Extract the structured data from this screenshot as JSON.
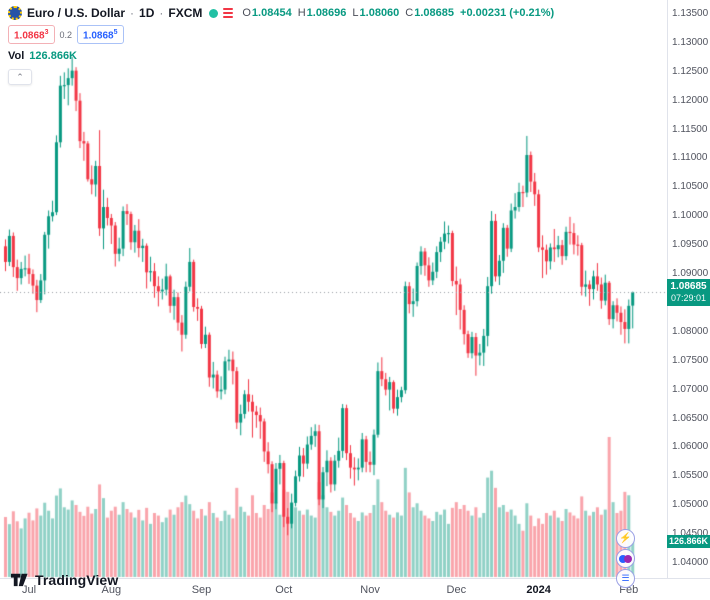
{
  "header": {
    "symbol_name": "Euro / U.S. Dollar",
    "separator": "·",
    "timeframe": "1D",
    "exchange": "FXCM",
    "ohlc": {
      "open_label": "O",
      "open": "1.08454",
      "high_label": "H",
      "high": "1.08696",
      "low_label": "L",
      "low": "1.08060",
      "close_label": "C",
      "close": "1.08685",
      "change": "+0.00231 (+0.21%)"
    },
    "trade_panel": {
      "sell_price": "1.0868",
      "sell_sup": "3",
      "spread": "0.2",
      "buy_price": "1.0868",
      "buy_sup": "5"
    },
    "volume_row": {
      "label": "Vol",
      "value": "126.866K"
    },
    "collapse_icon": "⌃"
  },
  "badges": {
    "last_price": "1.08685",
    "countdown": "07:29:01",
    "volume": "126.866K"
  },
  "footer": {
    "logo_text": "TradingView"
  },
  "colors": {
    "up": "#089981",
    "down": "#f23645",
    "vol_up": "rgba(8,153,129,0.45)",
    "vol_down": "rgba(242,54,69,0.45)",
    "last_line": "#9598a1",
    "buy": "#2962ff",
    "sell": "#f23645",
    "axis_text": "#50535e"
  },
  "chart_data": {
    "type": "candlestick",
    "title": "Euro / U.S. Dollar · 1D · FXCM",
    "legend_position": "top-left",
    "grid": false,
    "y_axis": {
      "min": 1.04,
      "max": 1.135,
      "tick": 0.005,
      "format_decimals": 5
    },
    "x_axis": {
      "month_ticks": [
        {
          "label": "Jul",
          "index": 6
        },
        {
          "label": "Aug",
          "index": 27
        },
        {
          "label": "Sep",
          "index": 50
        },
        {
          "label": "Oct",
          "index": 71
        },
        {
          "label": "Nov",
          "index": 93
        },
        {
          "label": "Dec",
          "index": 115
        },
        {
          "label": "2024",
          "index": 136,
          "bold": true
        },
        {
          "label": "Feb",
          "index": 159
        }
      ]
    },
    "last_price": 1.08685,
    "last_volume_label": "126.866K",
    "candles_format": "[open, high, low, close]",
    "candles": [
      [
        1.0948,
        1.096,
        1.0905,
        1.0921
      ],
      [
        1.0921,
        1.0977,
        1.0914,
        1.0966
      ],
      [
        1.0966,
        1.0972,
        1.0895,
        1.0912
      ],
      [
        1.0912,
        1.0925,
        1.0871,
        1.0893
      ],
      [
        1.0893,
        1.0921,
        1.0882,
        1.0909
      ],
      [
        1.0909,
        1.0932,
        1.0896,
        1.091
      ],
      [
        1.091,
        1.0935,
        1.0883,
        1.09
      ],
      [
        1.09,
        1.0908,
        1.0866,
        1.088
      ],
      [
        1.088,
        1.089,
        1.0834,
        1.0855
      ],
      [
        1.0855,
        1.09,
        1.085,
        1.0889
      ],
      [
        1.0889,
        1.0973,
        1.0865,
        1.0968
      ],
      [
        1.0968,
        1.101,
        1.0944,
        1.1
      ],
      [
        1.1,
        1.1027,
        1.0991,
        1.1007
      ],
      [
        1.1007,
        1.114,
        1.1002,
        1.1128
      ],
      [
        1.1128,
        1.1243,
        1.1119,
        1.1226
      ],
      [
        1.1226,
        1.1249,
        1.1203,
        1.1227
      ],
      [
        1.1227,
        1.1256,
        1.1192,
        1.1239
      ],
      [
        1.1239,
        1.1276,
        1.1226,
        1.1252
      ],
      [
        1.1252,
        1.1258,
        1.1182,
        1.12
      ],
      [
        1.12,
        1.1213,
        1.1118,
        1.113
      ],
      [
        1.113,
        1.1146,
        1.1096,
        1.1126
      ],
      [
        1.1126,
        1.113,
        1.106,
        1.1064
      ],
      [
        1.1064,
        1.1088,
        1.1038,
        1.1055
      ],
      [
        1.1055,
        1.1096,
        1.1034,
        1.1087
      ],
      [
        1.1087,
        1.1149,
        1.0966,
        1.0979
      ],
      [
        1.0979,
        1.1046,
        1.0943,
        1.1016
      ],
      [
        1.1016,
        1.1032,
        1.0984,
        1.0997
      ],
      [
        1.0997,
        1.1004,
        1.0952,
        1.0984
      ],
      [
        1.0984,
        1.099,
        1.0913,
        1.0935
      ],
      [
        1.0935,
        1.0963,
        1.0922,
        1.0944
      ],
      [
        1.0944,
        1.1017,
        1.0931,
        1.1009
      ],
      [
        1.1009,
        1.1021,
        1.0985,
        1.1004
      ],
      [
        1.1004,
        1.1008,
        1.0942,
        1.0955
      ],
      [
        1.0955,
        1.0985,
        1.0937,
        1.0975
      ],
      [
        1.0975,
        1.0995,
        1.0929,
        1.0945
      ],
      [
        1.0945,
        1.0961,
        1.0921,
        1.0949
      ],
      [
        1.0949,
        1.0953,
        1.0875,
        1.0903
      ],
      [
        1.0903,
        1.093,
        1.0887,
        1.0905
      ],
      [
        1.0905,
        1.0919,
        1.0859,
        1.0879
      ],
      [
        1.0879,
        1.0896,
        1.0844,
        1.087
      ],
      [
        1.087,
        1.0892,
        1.0856,
        1.0873
      ],
      [
        1.0873,
        1.0918,
        1.0863,
        1.0896
      ],
      [
        1.0896,
        1.0899,
        1.0833,
        1.0845
      ],
      [
        1.0845,
        1.0873,
        1.0821,
        1.086
      ],
      [
        1.086,
        1.0868,
        1.0802,
        1.0816
      ],
      [
        1.0816,
        1.0829,
        1.0766,
        1.0795
      ],
      [
        1.0795,
        1.0887,
        1.0788,
        1.0878
      ],
      [
        1.0878,
        1.0945,
        1.087,
        1.0921
      ],
      [
        1.0921,
        1.0925,
        1.0835,
        1.0843
      ],
      [
        1.0843,
        1.0858,
        1.0819,
        1.084
      ],
      [
        1.084,
        1.0845,
        1.0771,
        1.0779
      ],
      [
        1.0779,
        1.0809,
        1.0772,
        1.0795
      ],
      [
        1.0795,
        1.0799,
        1.0705,
        1.0721
      ],
      [
        1.0721,
        1.0748,
        1.0702,
        1.0726
      ],
      [
        1.0726,
        1.0733,
        1.0686,
        1.0697
      ],
      [
        1.0697,
        1.0723,
        1.0683,
        1.07
      ],
      [
        1.07,
        1.0757,
        1.0692,
        1.0749
      ],
      [
        1.0749,
        1.0769,
        1.0733,
        1.0752
      ],
      [
        1.0752,
        1.0766,
        1.0709,
        1.0732
      ],
      [
        1.0732,
        1.0739,
        1.0632,
        1.0643
      ],
      [
        1.0643,
        1.0674,
        1.0621,
        1.0658
      ],
      [
        1.0658,
        1.0699,
        1.065,
        1.0692
      ],
      [
        1.0692,
        1.0718,
        1.0662,
        1.0679
      ],
      [
        1.0679,
        1.0691,
        1.0617,
        1.0662
      ],
      [
        1.0662,
        1.0672,
        1.0634,
        1.0656
      ],
      [
        1.0656,
        1.0669,
        1.0615,
        1.0645
      ],
      [
        1.0645,
        1.065,
        1.0575,
        1.0593
      ],
      [
        1.0593,
        1.0609,
        1.0555,
        1.0571
      ],
      [
        1.0571,
        1.0576,
        1.0488,
        1.0503
      ],
      [
        1.0503,
        1.0573,
        1.0493,
        1.0563
      ],
      [
        1.0563,
        1.0587,
        1.0536,
        1.0573
      ],
      [
        1.0573,
        1.0577,
        1.0462,
        1.048
      ],
      [
        1.048,
        1.0495,
        1.0448,
        1.0468
      ],
      [
        1.0468,
        1.052,
        1.046,
        1.0504
      ],
      [
        1.0504,
        1.056,
        1.0498,
        1.055
      ],
      [
        1.055,
        1.0601,
        1.0541,
        1.0586
      ],
      [
        1.0586,
        1.0599,
        1.0549,
        1.0572
      ],
      [
        1.0572,
        1.0619,
        1.0563,
        1.0605
      ],
      [
        1.0605,
        1.0635,
        1.0596,
        1.062
      ],
      [
        1.062,
        1.064,
        1.0601,
        1.0628
      ],
      [
        1.0628,
        1.0639,
        1.05,
        1.051
      ],
      [
        1.051,
        1.0566,
        1.0495,
        1.0557
      ],
      [
        1.0557,
        1.0595,
        1.0533,
        1.0577
      ],
      [
        1.0577,
        1.0583,
        1.0522,
        1.0536
      ],
      [
        1.0536,
        1.0587,
        1.0525,
        1.0577
      ],
      [
        1.0577,
        1.0617,
        1.0565,
        1.0594
      ],
      [
        1.0594,
        1.0675,
        1.0582,
        1.0668
      ],
      [
        1.0668,
        1.0674,
        1.0578,
        1.059
      ],
      [
        1.059,
        1.0604,
        1.0546,
        1.0565
      ],
      [
        1.0565,
        1.0583,
        1.0534,
        1.0562
      ],
      [
        1.0562,
        1.0581,
        1.0543,
        1.0565
      ],
      [
        1.0565,
        1.0625,
        1.0557,
        1.0614
      ],
      [
        1.0614,
        1.062,
        1.0557,
        1.0575
      ],
      [
        1.0575,
        1.0593,
        1.0557,
        1.057
      ],
      [
        1.057,
        1.0631,
        1.0552,
        1.0622
      ],
      [
        1.0622,
        1.0747,
        1.0617,
        1.0732
      ],
      [
        1.0732,
        1.0756,
        1.0706,
        1.0718
      ],
      [
        1.0718,
        1.0729,
        1.069,
        1.07
      ],
      [
        1.07,
        1.0722,
        1.0664,
        1.0713
      ],
      [
        1.0713,
        1.0716,
        1.0659,
        1.0667
      ],
      [
        1.0667,
        1.07,
        1.0655,
        1.0687
      ],
      [
        1.0687,
        1.0705,
        1.0678,
        1.0699
      ],
      [
        1.0699,
        1.0887,
        1.0693,
        1.0879
      ],
      [
        1.0879,
        1.0886,
        1.0832,
        1.0848
      ],
      [
        1.0848,
        1.0875,
        1.0826,
        1.0853
      ],
      [
        1.0853,
        1.092,
        1.0844,
        1.0914
      ],
      [
        1.0914,
        1.0948,
        1.0899,
        1.0939
      ],
      [
        1.0939,
        1.0945,
        1.0897,
        1.0915
      ],
      [
        1.0915,
        1.0929,
        1.0878,
        1.0889
      ],
      [
        1.0889,
        1.092,
        1.0881,
        1.0904
      ],
      [
        1.0904,
        1.0948,
        1.0893,
        1.0938
      ],
      [
        1.0938,
        1.0964,
        1.0921,
        1.0956
      ],
      [
        1.0956,
        1.0991,
        1.0943,
        1.097
      ],
      [
        1.097,
        1.0984,
        1.0953,
        1.0971
      ],
      [
        1.0971,
        1.0975,
        1.0879,
        1.0888
      ],
      [
        1.0888,
        1.0913,
        1.0829,
        1.0882
      ],
      [
        1.0882,
        1.0892,
        1.0804,
        1.0838
      ],
      [
        1.0838,
        1.0846,
        1.0778,
        1.0796
      ],
      [
        1.0796,
        1.0802,
        1.0755,
        1.0763
      ],
      [
        1.0763,
        1.08,
        1.0754,
        1.0791
      ],
      [
        1.0791,
        1.0798,
        1.0724,
        1.0759
      ],
      [
        1.0759,
        1.0779,
        1.0742,
        1.0764
      ],
      [
        1.0764,
        1.0805,
        1.0741,
        1.0793
      ],
      [
        1.0793,
        1.0895,
        1.0775,
        1.0879
      ],
      [
        1.0879,
        1.1009,
        1.0866,
        1.0992
      ],
      [
        1.0992,
        1.1004,
        1.0887,
        1.0896
      ],
      [
        1.0896,
        1.0933,
        1.0881,
        1.0923
      ],
      [
        1.0923,
        1.0988,
        1.0902,
        1.098
      ],
      [
        1.098,
        1.0985,
        1.093,
        1.0944
      ],
      [
        1.0944,
        1.1022,
        1.0938,
        1.101
      ],
      [
        1.101,
        1.104,
        1.0996,
        1.1016
      ],
      [
        1.1016,
        1.1058,
        1.1008,
        1.1042
      ],
      [
        1.1042,
        1.1053,
        1.1016,
        1.1041
      ],
      [
        1.1041,
        1.1139,
        1.1033,
        1.1106
      ],
      [
        1.1106,
        1.1112,
        1.1042,
        1.106
      ],
      [
        1.106,
        1.1075,
        1.1018,
        1.1038
      ],
      [
        1.1038,
        1.1046,
        1.0938,
        1.0946
      ],
      [
        1.0946,
        1.0967,
        1.0893,
        1.0942
      ],
      [
        1.0942,
        1.0951,
        1.0899,
        1.0922
      ],
      [
        1.0922,
        1.0953,
        1.0908,
        1.0946
      ],
      [
        1.0946,
        1.0978,
        1.0921,
        1.0943
      ],
      [
        1.0943,
        1.0966,
        1.0929,
        1.095
      ],
      [
        1.095,
        1.0959,
        1.0916,
        1.0931
      ],
      [
        1.0931,
        1.0982,
        1.0924,
        1.0973
      ],
      [
        1.0973,
        1.0999,
        1.0951,
        1.0971
      ],
      [
        1.0971,
        1.0988,
        1.0934,
        1.0951
      ],
      [
        1.0951,
        1.0967,
        1.0932,
        1.095
      ],
      [
        1.095,
        1.0954,
        1.0863,
        1.0878
      ],
      [
        1.0878,
        1.0906,
        1.0861,
        1.0882
      ],
      [
        1.0882,
        1.0889,
        1.0845,
        1.0874
      ],
      [
        1.0874,
        1.0906,
        1.0856,
        1.0896
      ],
      [
        1.0896,
        1.0919,
        1.0871,
        1.0882
      ],
      [
        1.0882,
        1.0894,
        1.084,
        1.0854
      ],
      [
        1.0854,
        1.0899,
        1.0846,
        1.0885
      ],
      [
        1.0885,
        1.0888,
        1.0812,
        1.0822
      ],
      [
        1.0822,
        1.0853,
        1.0806,
        1.0846
      ],
      [
        1.0846,
        1.0858,
        1.0818,
        1.0833
      ],
      [
        1.0833,
        1.0844,
        1.0795,
        1.0817
      ],
      [
        1.0817,
        1.0839,
        1.078,
        1.0805
      ],
      [
        1.0805,
        1.0856,
        1.078,
        1.0845
      ],
      [
        1.08454,
        1.08696,
        1.0806,
        1.08685
      ]
    ],
    "volumes_k": [
      210,
      185,
      230,
      195,
      170,
      205,
      225,
      198,
      240,
      215,
      260,
      232,
      205,
      285,
      310,
      244,
      236,
      268,
      252,
      228,
      214,
      246,
      222,
      238,
      324,
      276,
      208,
      232,
      246,
      218,
      262,
      238,
      226,
      208,
      235,
      198,
      242,
      186,
      224,
      215,
      192,
      208,
      236,
      218,
      244,
      262,
      285,
      255,
      232,
      205,
      238,
      215,
      262,
      224,
      208,
      196,
      232,
      218,
      205,
      312,
      246,
      228,
      215,
      286,
      224,
      208,
      252,
      238,
      296,
      262,
      218,
      305,
      298,
      262,
      244,
      232,
      218,
      236,
      215,
      208,
      332,
      286,
      244,
      228,
      215,
      232,
      278,
      252,
      224,
      208,
      196,
      226,
      215,
      224,
      252,
      342,
      262,
      232,
      218,
      208,
      226,
      215,
      382,
      296,
      244,
      258,
      232,
      215,
      205,
      196,
      228,
      218,
      236,
      186,
      242,
      262,
      238,
      252,
      232,
      215,
      244,
      208,
      224,
      348,
      372,
      312,
      244,
      252,
      228,
      236,
      215,
      186,
      162,
      258,
      215,
      178,
      205,
      186,
      224,
      215,
      232,
      208,
      196,
      238,
      226,
      215,
      205,
      282,
      232,
      215,
      228,
      244,
      218,
      236,
      490,
      262,
      224,
      232,
      298,
      286,
      126.866
    ]
  }
}
